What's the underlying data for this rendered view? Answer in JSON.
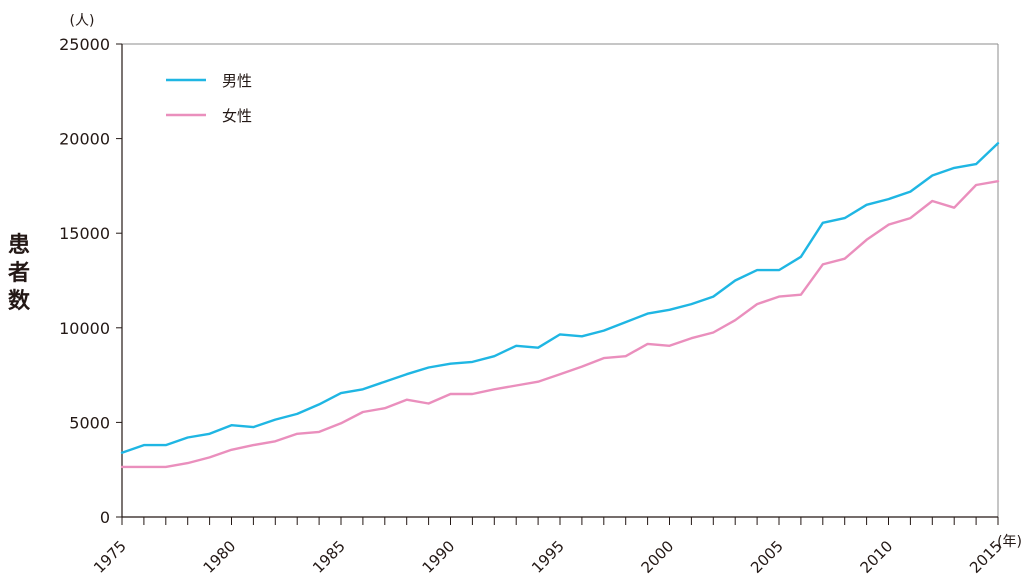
{
  "chart_data": {
    "type": "line",
    "title": "",
    "ylabel": "患者数",
    "yunit": "(人)",
    "xunit": "(年)",
    "xlim": [
      1975,
      2015
    ],
    "ylim": [
      0,
      25000
    ],
    "yticks": [
      0,
      5000,
      10000,
      15000,
      20000,
      25000
    ],
    "xtick_labels": [
      "1975",
      "1980",
      "1985",
      "1990",
      "1995",
      "2000",
      "2005",
      "2010",
      "2015"
    ],
    "legend_position": "top-left",
    "grid": false,
    "x": [
      1975,
      1976,
      1977,
      1978,
      1979,
      1980,
      1981,
      1982,
      1983,
      1984,
      1985,
      1986,
      1987,
      1988,
      1989,
      1990,
      1991,
      1992,
      1993,
      1994,
      1995,
      1996,
      1997,
      1998,
      1999,
      2000,
      2001,
      2002,
      2003,
      2004,
      2005,
      2006,
      2007,
      2008,
      2009,
      2010,
      2011,
      2012,
      2013,
      2014,
      2015
    ],
    "series": [
      {
        "name": "男性",
        "color": "#1fb6e3",
        "values": [
          3400,
          3800,
          3800,
          4200,
          4400,
          4850,
          4750,
          5150,
          5450,
          5950,
          6550,
          6750,
          7150,
          7550,
          7900,
          8100,
          8200,
          8500,
          9050,
          8950,
          9650,
          9550,
          9850,
          10300,
          10750,
          10950,
          11250,
          11650,
          12500,
          13050,
          13050,
          13750,
          15550,
          15800,
          16500,
          16800,
          17200,
          18050,
          18450,
          18650,
          19750
        ]
      },
      {
        "name": "女性",
        "color": "#ea8fbd",
        "values": [
          2650,
          2650,
          2650,
          2850,
          3150,
          3550,
          3800,
          4000,
          4400,
          4500,
          4950,
          5550,
          5750,
          6200,
          6000,
          6500,
          6500,
          6750,
          6950,
          7150,
          7550,
          7950,
          8400,
          8500,
          9150,
          9050,
          9450,
          9750,
          10400,
          11250,
          11650,
          11750,
          13350,
          13650,
          14650,
          15450,
          15800,
          16700,
          16350,
          17550,
          17750
        ]
      }
    ]
  }
}
